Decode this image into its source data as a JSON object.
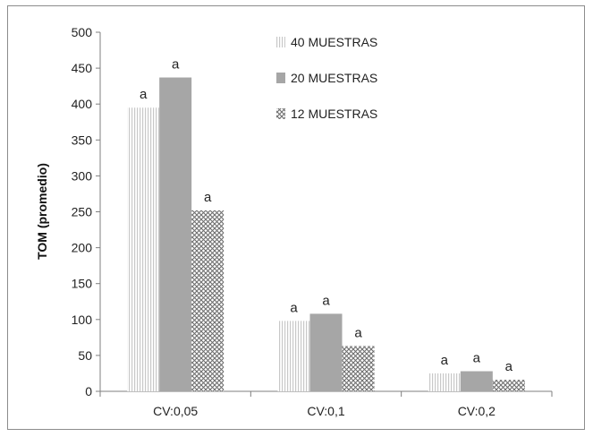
{
  "chart_data": {
    "type": "bar",
    "title": "",
    "xlabel": "",
    "ylabel": "TOM (promedio)",
    "ylim": [
      0,
      500
    ],
    "ytick_step": 50,
    "grid": false,
    "legend_position": "top-right",
    "categories": [
      "CV:0,05",
      "CV:0,1",
      "CV:0,2"
    ],
    "series": [
      {
        "name": "40 MUESTRAS",
        "pattern": "vertical-lines",
        "values": [
          395,
          98,
          25
        ],
        "labels": [
          "a",
          "a",
          "a"
        ]
      },
      {
        "name": "20 MUESTRAS",
        "pattern": "solid-gray",
        "values": [
          437,
          108,
          28
        ],
        "labels": [
          "a",
          "a",
          "a"
        ]
      },
      {
        "name": "12 MUESTRAS",
        "pattern": "crosshatch",
        "values": [
          252,
          63,
          16
        ],
        "labels": [
          "a",
          "a",
          "a"
        ]
      }
    ],
    "colors": {
      "axis": "#7f7f7f",
      "solid_gray": "#a6a6a6",
      "lines": "#cfcfcf",
      "hatch": "#6e6e6e"
    }
  }
}
